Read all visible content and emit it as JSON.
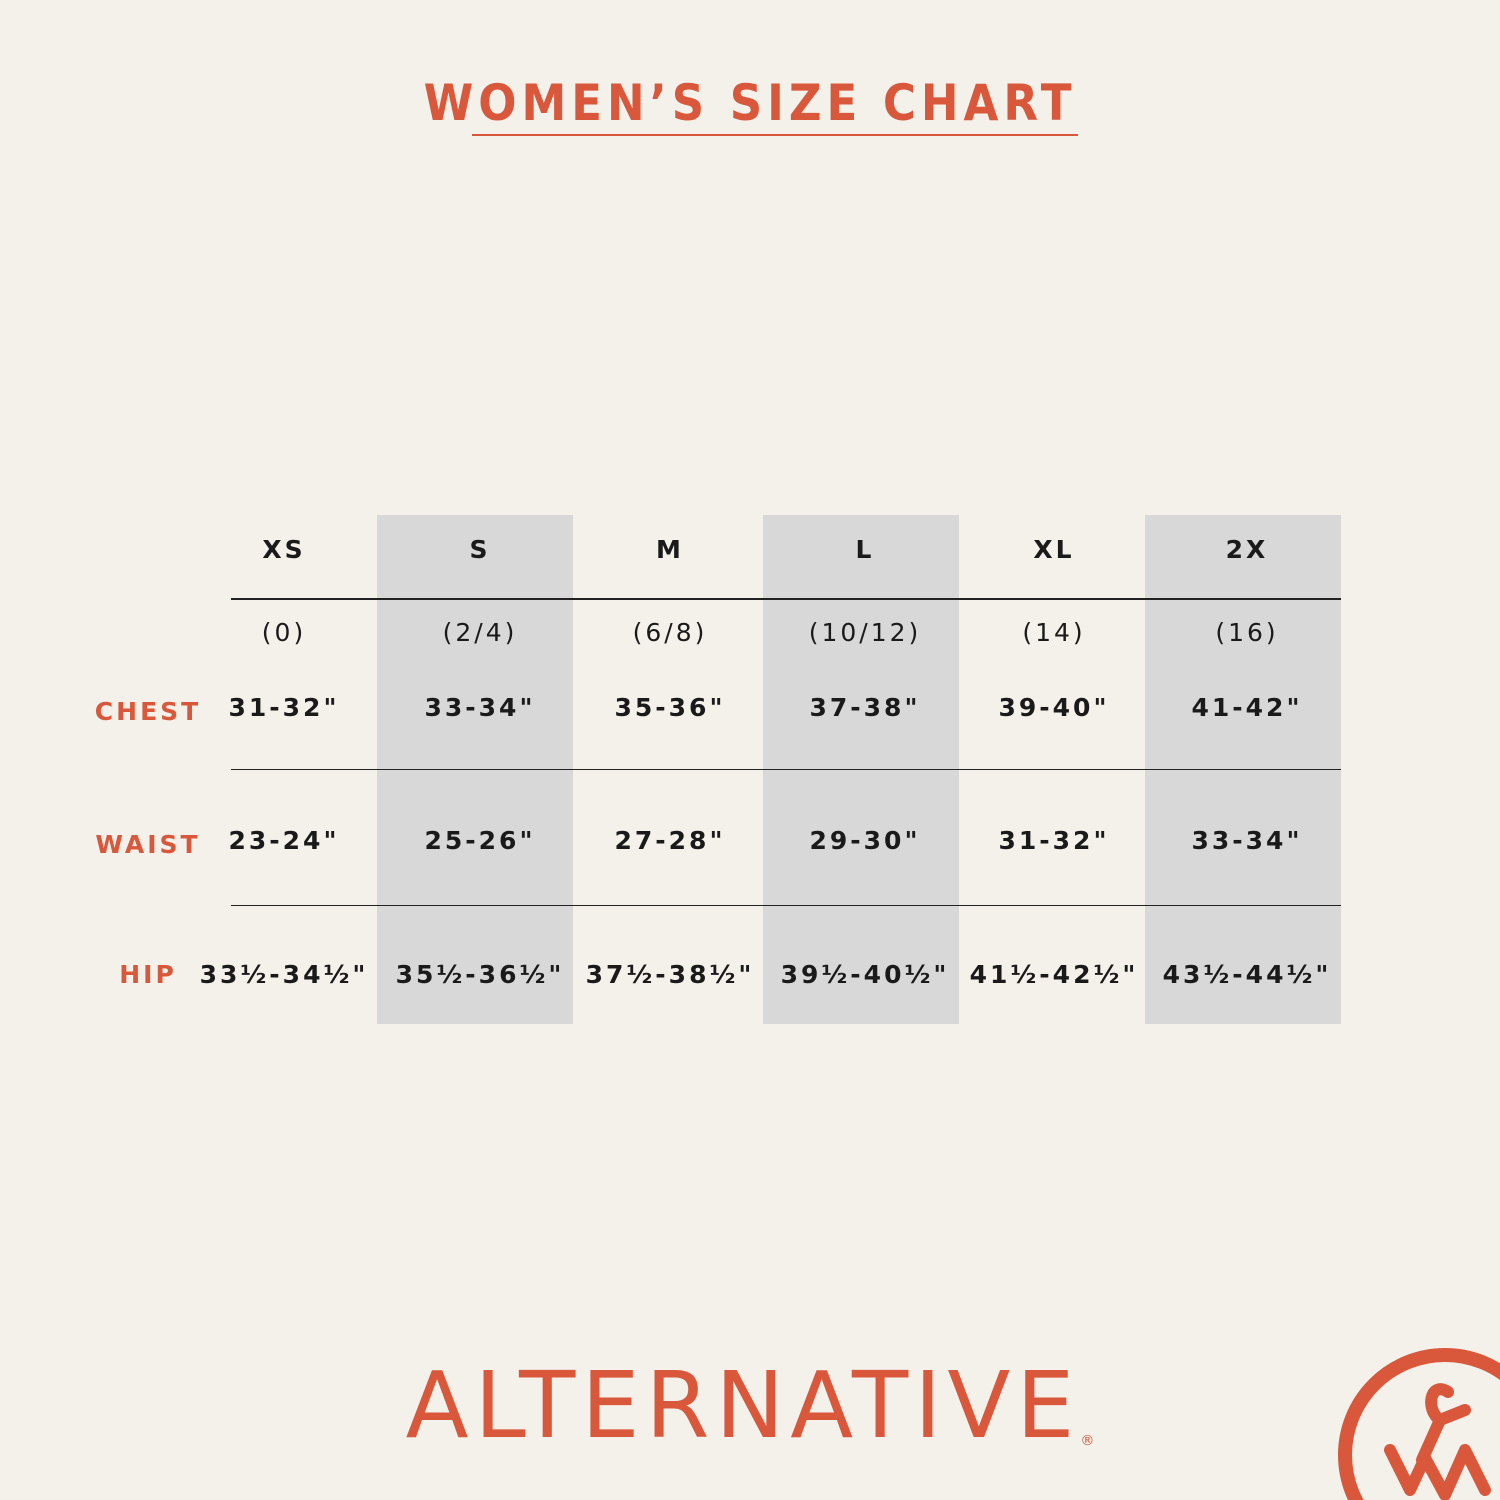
{
  "header": {
    "title": "WOMEN’S SIZE CHART"
  },
  "table": {
    "columns": [
      "XS",
      "S",
      "M",
      "L",
      "XL",
      "2X"
    ],
    "sizes": [
      "(0)",
      "(2/4)",
      "(6/8)",
      "(10/12)",
      "(14)",
      "(16)"
    ],
    "rows": [
      {
        "label": "CHEST",
        "values": [
          "31-32\"",
          "33-34\"",
          "35-36\"",
          "37-38\"",
          "39-40\"",
          "41-42\""
        ]
      },
      {
        "label": "WAIST",
        "values": [
          "23-24\"",
          "25-26\"",
          "27-28\"",
          "29-30\"",
          "31-32\"",
          "33-34\""
        ]
      },
      {
        "label": "HIP",
        "values": [
          "33½-34½\"",
          "35½-36½\"",
          "37½-38½\"",
          "39½-40½\"",
          "41½-42½\"",
          "43½-44½\""
        ]
      }
    ]
  },
  "footer": {
    "brand": "ALTERNATIVE",
    "mark": "®"
  }
}
